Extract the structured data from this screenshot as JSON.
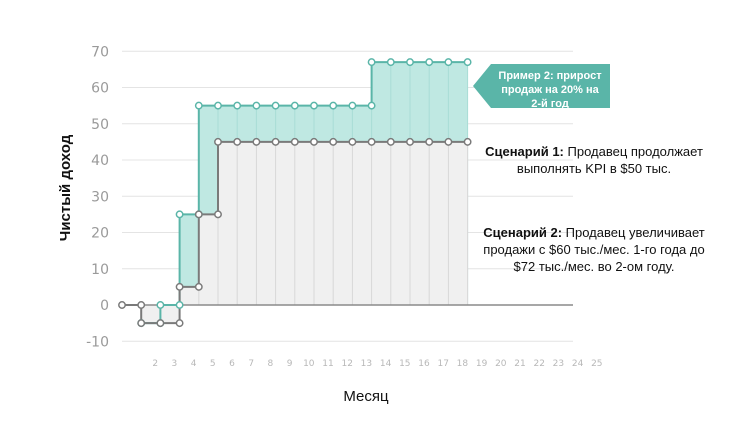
{
  "chart_data": {
    "type": "line",
    "step": true,
    "xlabel": "Месяц",
    "ylabel": "Чистый доход",
    "ylim": [
      -10,
      70
    ],
    "yticks": [
      -10,
      0,
      10,
      20,
      30,
      40,
      50,
      60,
      70
    ],
    "xticks": [
      "2",
      "3",
      "4",
      "5",
      "6",
      "7",
      "8",
      "9",
      "10",
      "11",
      "12",
      "13",
      "14",
      "15",
      "16",
      "17",
      "18",
      "19",
      "20",
      "21",
      "22",
      "23",
      "24",
      "25"
    ],
    "grid": true,
    "series": [
      {
        "color": "#5ab5a8",
        "fill": "#bfe8e2",
        "x": [
          2,
          3,
          4,
          5,
          6,
          7,
          8,
          9,
          10,
          11,
          12,
          13,
          14,
          15,
          16,
          17,
          18,
          19
        ],
        "values": [
          -5,
          0,
          25,
          55,
          55,
          55,
          55,
          55,
          55,
          55,
          55,
          55,
          67,
          67,
          67,
          67,
          67,
          67
        ]
      },
      {
        "color": "#7a7a7a",
        "fill": "#f0f0f0",
        "x": [
          1,
          2,
          3,
          4,
          5,
          6,
          7,
          8,
          9,
          10,
          11,
          12,
          13,
          14,
          15,
          16,
          17,
          18,
          19
        ],
        "values": [
          0,
          -5,
          -5,
          5,
          25,
          45,
          45,
          45,
          45,
          45,
          45,
          45,
          45,
          45,
          45,
          45,
          45,
          45,
          45
        ]
      }
    ],
    "callout": {
      "lines": [
        "Пример 2: прирост",
        "продаж на 20% на",
        "2-й год"
      ],
      "color": "#5ab5a8"
    },
    "notes": [
      {
        "title": "Сценарий 1:",
        "text": " Продавец продолжает выполнять KPI в $50 тыс."
      },
      {
        "title": "Сценарий 2:",
        "text": " Продавец увеличивает продажи с $60 тыс./мес. 1-го года до $72 тыс./мес. во 2-ом году."
      }
    ]
  }
}
